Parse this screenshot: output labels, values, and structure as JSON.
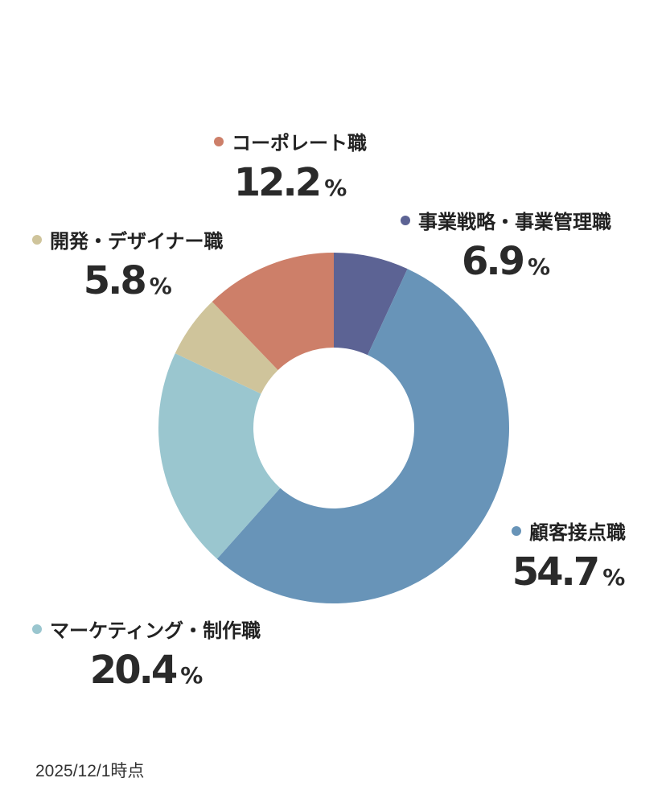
{
  "chart_data": {
    "type": "pie",
    "donut": true,
    "unit": "%",
    "slices": [
      {
        "label": "事業戦略・事業管理職",
        "value": 6.9,
        "color": "#5c6394"
      },
      {
        "label": "顧客接点職",
        "value": 54.7,
        "color": "#6894b8"
      },
      {
        "label": "マーケティング・制作職",
        "value": 20.4,
        "color": "#9ac6cf"
      },
      {
        "label": "開発・デザイナー職",
        "value": 5.8,
        "color": "#cfc49b"
      },
      {
        "label": "コーポレート職",
        "value": 12.2,
        "color": "#cd7f69"
      }
    ]
  },
  "labels": {
    "pct_sign": "%"
  },
  "footer": {
    "as_of": "2025/12/1時点"
  }
}
